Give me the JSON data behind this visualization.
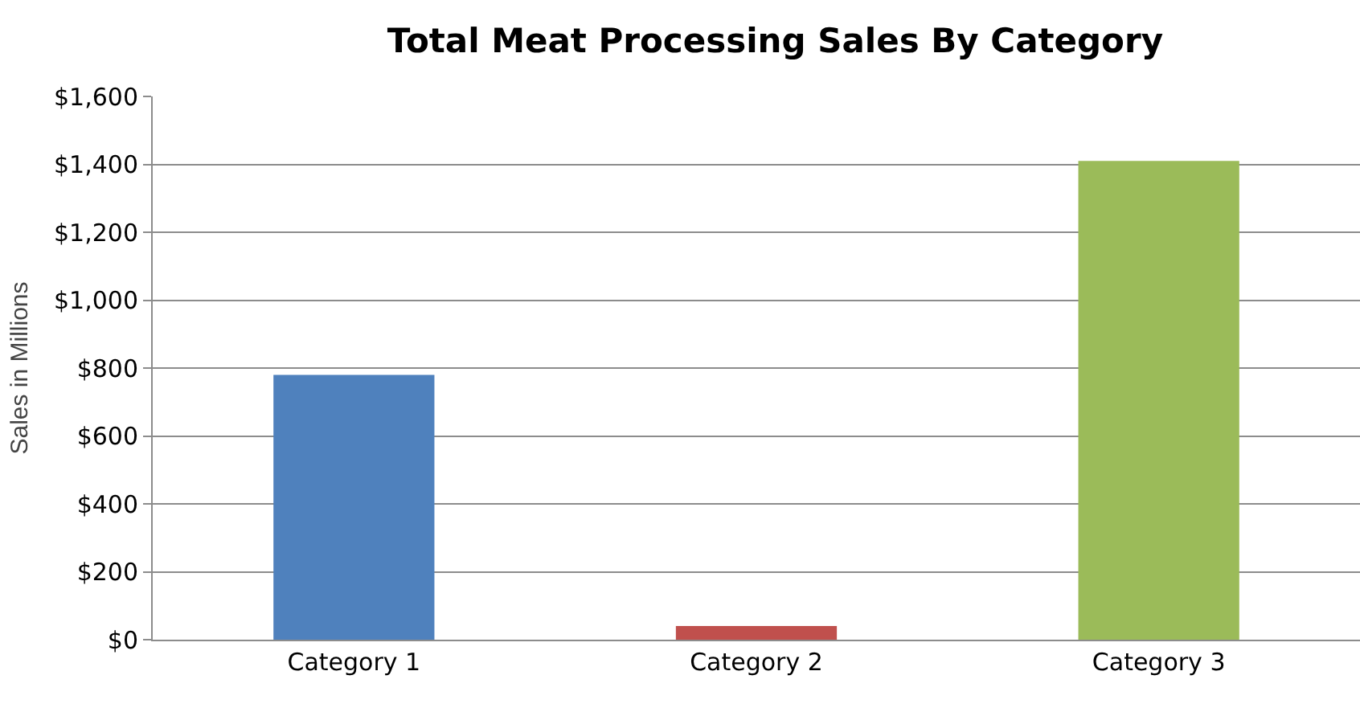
{
  "chart_data": {
    "type": "bar",
    "title": "Total Meat Processing Sales By Category",
    "ylabel": "Sales in Millions",
    "categories": [
      "Category 1",
      "Category 2",
      "Category 3"
    ],
    "values": [
      780,
      40,
      1410
    ],
    "colors": [
      "#4f81bd",
      "#c0504d",
      "#9bbb59"
    ],
    "ylim": [
      0,
      1600
    ],
    "yticks": [
      {
        "value": 0,
        "label": "$0"
      },
      {
        "value": 200,
        "label": "$200"
      },
      {
        "value": 400,
        "label": "$400"
      },
      {
        "value": 600,
        "label": "$600"
      },
      {
        "value": 800,
        "label": "$800"
      },
      {
        "value": 1000,
        "label": "$1,000"
      },
      {
        "value": 1200,
        "label": "$1,200"
      },
      {
        "value": 1400,
        "label": "$1,400"
      },
      {
        "value": 1600,
        "label": "$1,600"
      }
    ],
    "grid": "y"
  }
}
